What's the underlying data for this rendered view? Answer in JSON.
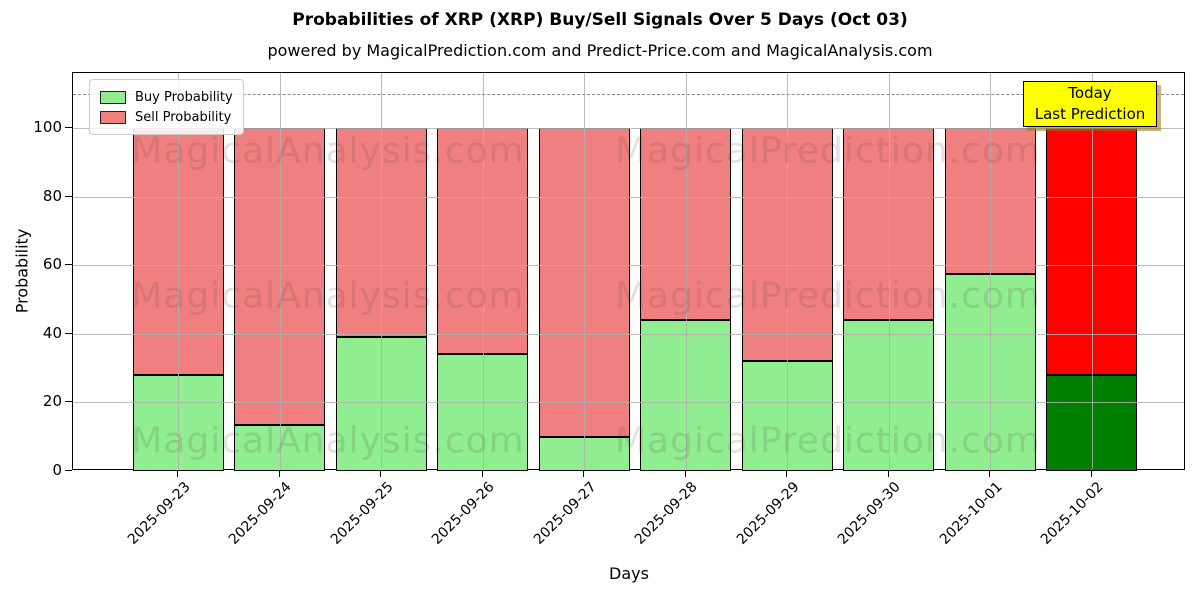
{
  "chart_data": {
    "type": "bar",
    "stacked": true,
    "title": "Probabilities of XRP (XRP) Buy/Sell Signals Over 5 Days (Oct 03)",
    "subtitle": "powered by MagicalPrediction.com and Predict-Price.com and MagicalAnalysis.com",
    "xlabel": "Days",
    "ylabel": "Probability",
    "categories": [
      "2025-09-23",
      "2025-09-24",
      "2025-09-25",
      "2025-09-26",
      "2025-09-27",
      "2025-09-28",
      "2025-09-29",
      "2025-09-30",
      "2025-10-01",
      "2025-10-02"
    ],
    "series": [
      {
        "name": "Buy Probability",
        "color": "#90ee90",
        "values": [
          28,
          13.5,
          39,
          34,
          10,
          44,
          32,
          44,
          57.5,
          28
        ]
      },
      {
        "name": "Sell Probability",
        "color": "#f08080",
        "values": [
          72,
          86.5,
          61,
          66,
          90,
          56,
          68,
          56,
          42.5,
          72
        ]
      }
    ],
    "highlight_last_bar": {
      "buy_color": "#008000",
      "sell_color": "#ff0000"
    },
    "yticks": [
      0,
      20,
      40,
      60,
      80,
      100
    ],
    "ylim": [
      0,
      116
    ],
    "grid": true,
    "threshold_line": {
      "value": 110,
      "style": "dashed",
      "color": "#8a8a8a"
    },
    "legend": {
      "position": "upper left"
    },
    "annotation": {
      "line1": "Today",
      "line2": "Last Prediction",
      "bg_color": "#ffff00"
    },
    "watermarks": {
      "left": "MagicalAnalysis.com",
      "right": "MagicalPrediction.com"
    }
  }
}
